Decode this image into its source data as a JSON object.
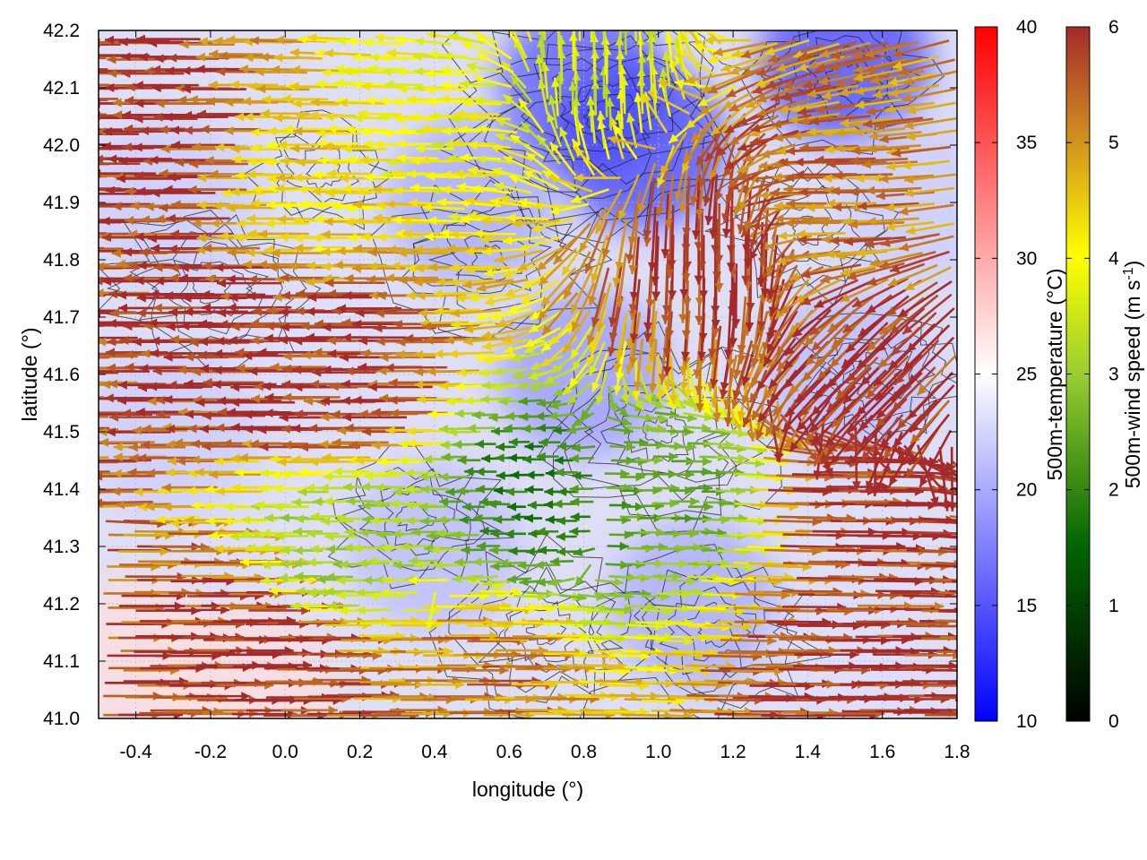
{
  "chart_data": {
    "type": "heatmap",
    "title": "",
    "xlabel": "longitude (°)",
    "ylabel": "latitude (°)",
    "xlim": [
      -0.5,
      1.8
    ],
    "ylim": [
      41.0,
      42.2
    ],
    "x_ticks": [
      "-0.4",
      "-0.2",
      "0.0",
      "0.2",
      "0.4",
      "0.6",
      "0.8",
      "1.0",
      "1.2",
      "1.4",
      "1.6",
      "1.8"
    ],
    "y_ticks": [
      "41.0",
      "41.1",
      "41.2",
      "41.3",
      "41.4",
      "41.5",
      "41.6",
      "41.7",
      "41.8",
      "41.9",
      "42.0",
      "42.1",
      "42.2"
    ],
    "grid": true,
    "temperature_colorbar": {
      "label": "500m-temperature (°C)",
      "range": [
        10,
        40
      ],
      "ticks": [
        "10",
        "15",
        "20",
        "25",
        "30",
        "35",
        "40"
      ],
      "colors": [
        "#0000ff",
        "#ffffff",
        "#ff0000"
      ]
    },
    "wind_colorbar": {
      "label": "500m-wind speed (m s-1)",
      "range": [
        0,
        6
      ],
      "ticks": [
        "0",
        "1",
        "2",
        "3",
        "4",
        "5",
        "6"
      ],
      "colors": [
        "#000000",
        "#006400",
        "#9acd32",
        "#ffff00",
        "#d2961e",
        "#a52a2a"
      ]
    },
    "temperature_field_samples": [
      {
        "lon": -0.4,
        "lat": 41.1,
        "t": 27
      },
      {
        "lon": -0.1,
        "lat": 41.05,
        "t": 27
      },
      {
        "lon": -0.3,
        "lat": 41.5,
        "t": 22
      },
      {
        "lon": -0.3,
        "lat": 41.9,
        "t": 22
      },
      {
        "lon": 0.1,
        "lat": 41.7,
        "t": 23
      },
      {
        "lon": 0.4,
        "lat": 41.3,
        "t": 21
      },
      {
        "lon": 0.5,
        "lat": 41.9,
        "t": 20
      },
      {
        "lon": 0.8,
        "lat": 42.1,
        "t": 15
      },
      {
        "lon": 0.95,
        "lat": 42.0,
        "t": 14
      },
      {
        "lon": 1.5,
        "lat": 42.15,
        "t": 14
      },
      {
        "lon": 0.8,
        "lat": 41.6,
        "t": 19
      },
      {
        "lon": 1.1,
        "lat": 41.2,
        "t": 20
      },
      {
        "lon": 1.5,
        "lat": 41.6,
        "t": 21
      },
      {
        "lon": 1.5,
        "lat": 41.1,
        "t": 23
      },
      {
        "lon": 1.7,
        "lat": 41.9,
        "t": 22
      }
    ],
    "wind_field_samples": [
      {
        "lon": -0.3,
        "lat": 42.0,
        "speed": 6,
        "dir": "west"
      },
      {
        "lon": -0.1,
        "lat": 41.7,
        "speed": 6,
        "dir": "west"
      },
      {
        "lon": 0.2,
        "lat": 41.6,
        "speed": 6,
        "dir": "west"
      },
      {
        "lon": 0.1,
        "lat": 41.9,
        "speed": 4,
        "dir": "west"
      },
      {
        "lon": 0.2,
        "lat": 41.3,
        "speed": 2.5,
        "dir": "west"
      },
      {
        "lon": -0.1,
        "lat": 41.1,
        "speed": 6,
        "dir": "east"
      },
      {
        "lon": 0.4,
        "lat": 41.05,
        "speed": 5,
        "dir": "east"
      },
      {
        "lon": 0.7,
        "lat": 41.4,
        "speed": 1.5,
        "dir": "west"
      },
      {
        "lon": 1.0,
        "lat": 41.4,
        "speed": 2,
        "dir": "east"
      },
      {
        "lon": 1.5,
        "lat": 41.1,
        "speed": 6,
        "dir": "east"
      },
      {
        "lon": 1.5,
        "lat": 41.4,
        "speed": 6,
        "dir": "east"
      },
      {
        "lon": 1.2,
        "lat": 41.85,
        "speed": 6,
        "dir": "south"
      },
      {
        "lon": 1.5,
        "lat": 41.9,
        "speed": 5,
        "dir": "west"
      },
      {
        "lon": 0.8,
        "lat": 42.1,
        "speed": 3,
        "dir": "north"
      },
      {
        "lon": 0.5,
        "lat": 42.05,
        "speed": 3.5,
        "dir": "west"
      },
      {
        "lon": 1.6,
        "lat": 41.6,
        "speed": 6,
        "dir": "southwest"
      }
    ]
  }
}
